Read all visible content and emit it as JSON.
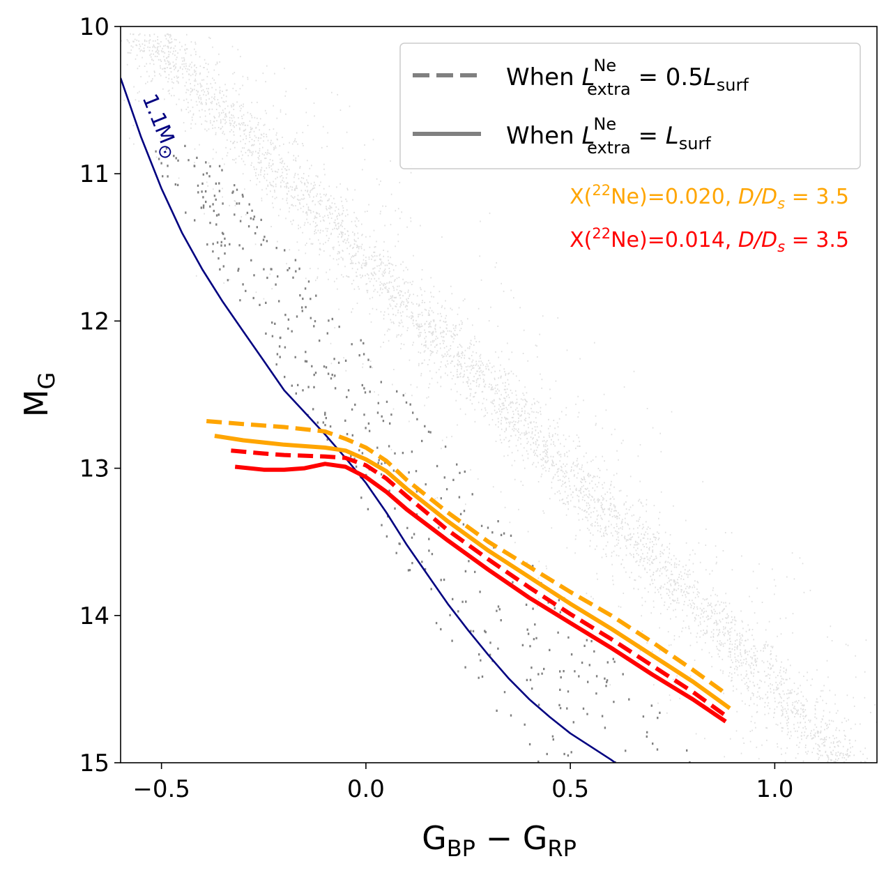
{
  "chart_data": {
    "type": "scatter",
    "xlabel": "G BP − G RP",
    "xlabel_main": "G",
    "xlabel_sub1": "BP",
    "xlabel_mid": " − G",
    "xlabel_sub2": "RP",
    "ylabel_main": "M",
    "ylabel_sub": "G",
    "xlim": [
      -0.6,
      1.25
    ],
    "ylim": [
      15,
      10
    ],
    "y_inverted": true,
    "x_ticks": [
      -0.5,
      0.0,
      0.5,
      1.0
    ],
    "x_tick_labels": [
      "−0.5",
      "0.0",
      "0.5",
      "1.0"
    ],
    "y_ticks": [
      10,
      11,
      12,
      13,
      14,
      15
    ],
    "y_tick_labels": [
      "10",
      "11",
      "12",
      "13",
      "14",
      "15"
    ],
    "legend_position": "top-right",
    "legend": {
      "dashed_prefix": "When ",
      "dashed_L": "L",
      "dashed_sup": "Ne",
      "dashed_sub": "extra",
      "dashed_rhs": " = 0.5",
      "dashed_L2": "L",
      "dashed_sub2": "surf",
      "solid_prefix": "When ",
      "solid_L": "L",
      "solid_sup": "Ne",
      "solid_sub": "extra",
      "solid_rhs": " = ",
      "solid_L2": "L",
      "solid_sub2": "surf"
    },
    "annotations": {
      "orange_a": "X(",
      "orange_sup": "22",
      "orange_b": "Ne)=0.020, ",
      "orange_c": "D/D",
      "orange_sub": "s",
      "orange_d": " = 3.5",
      "red_a": "X(",
      "red_sup": "22",
      "red_b": "Ne)=0.014, ",
      "red_c": "D/D",
      "red_sub": "s",
      "red_d": " = 3.5",
      "curve_label": "1.1M",
      "curve_label_sym": "⊙"
    },
    "colors": {
      "orange": "#ffa500",
      "red": "#ff0000",
      "navy": "#000080",
      "legend_gray": "#808080",
      "scatter_gray": "#808080"
    },
    "series": [
      {
        "style": "navy-solid",
        "x": [
          -0.6,
          -0.55,
          -0.5,
          -0.45,
          -0.4,
          -0.35,
          -0.3,
          -0.25,
          -0.2,
          -0.15,
          -0.1,
          -0.05,
          0.0,
          0.05,
          0.1,
          0.15,
          0.2,
          0.25,
          0.3,
          0.35,
          0.4,
          0.45,
          0.5,
          0.55,
          0.6,
          0.61
        ],
        "y": [
          10.35,
          10.75,
          11.1,
          11.4,
          11.65,
          11.87,
          12.07,
          12.27,
          12.47,
          12.62,
          12.77,
          12.93,
          13.1,
          13.3,
          13.52,
          13.72,
          13.92,
          14.1,
          14.27,
          14.43,
          14.57,
          14.69,
          14.8,
          14.89,
          14.98,
          15.0
        ]
      },
      {
        "style": "orange-dashed",
        "x": [
          -0.39,
          -0.3,
          -0.2,
          -0.1,
          -0.05,
          0.0,
          0.05,
          0.1,
          0.2,
          0.3,
          0.4,
          0.5,
          0.6,
          0.7,
          0.8,
          0.88
        ],
        "y": [
          12.68,
          12.7,
          12.72,
          12.75,
          12.8,
          12.86,
          12.95,
          13.08,
          13.3,
          13.5,
          13.67,
          13.84,
          14.0,
          14.18,
          14.37,
          14.53
        ]
      },
      {
        "style": "orange-solid",
        "x": [
          -0.37,
          -0.3,
          -0.2,
          -0.1,
          -0.05,
          0.0,
          0.05,
          0.1,
          0.2,
          0.3,
          0.4,
          0.5,
          0.6,
          0.7,
          0.8,
          0.89
        ],
        "y": [
          12.78,
          12.81,
          12.84,
          12.86,
          12.88,
          12.94,
          13.02,
          13.14,
          13.36,
          13.56,
          13.74,
          13.92,
          14.09,
          14.27,
          14.45,
          14.63
        ]
      },
      {
        "style": "red-dashed",
        "x": [
          -0.33,
          -0.25,
          -0.2,
          -0.1,
          -0.05,
          0.0,
          0.05,
          0.1,
          0.2,
          0.3,
          0.4,
          0.5,
          0.6,
          0.7,
          0.8,
          0.88
        ],
        "y": [
          12.88,
          12.9,
          12.91,
          12.92,
          12.93,
          12.98,
          13.07,
          13.19,
          13.42,
          13.62,
          13.81,
          13.99,
          14.16,
          14.34,
          14.52,
          14.68
        ]
      },
      {
        "style": "red-solid",
        "x": [
          -0.32,
          -0.25,
          -0.2,
          -0.15,
          -0.1,
          -0.05,
          0.0,
          0.05,
          0.1,
          0.2,
          0.3,
          0.4,
          0.5,
          0.6,
          0.7,
          0.8,
          0.88
        ],
        "y": [
          12.99,
          13.01,
          13.01,
          13.0,
          12.97,
          12.99,
          13.06,
          13.16,
          13.28,
          13.49,
          13.69,
          13.88,
          14.05,
          14.22,
          14.4,
          14.57,
          14.72
        ]
      }
    ]
  }
}
